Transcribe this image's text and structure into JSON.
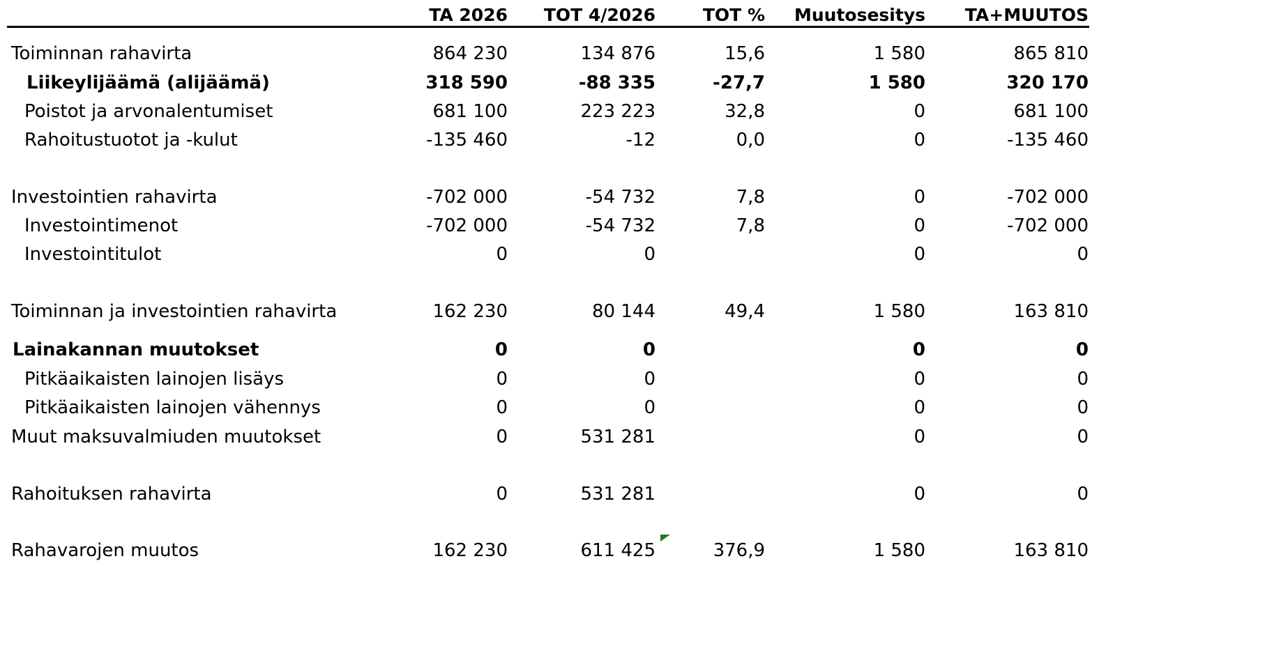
{
  "table": {
    "columns": [
      "TA 2026",
      "TOT 4/2026",
      "TOT %",
      "Muutosesitys",
      "TA+MUUTOS"
    ],
    "rows": [
      {
        "label": "Toiminnan rahavirta",
        "cells": [
          "864 230",
          "134 876",
          "15,6",
          "1 580",
          "865 810"
        ]
      },
      {
        "label": "Liikeylijäämä (alijäämä)",
        "bold": true,
        "cells": [
          "318 590",
          "-88 335",
          "-27,7",
          "1 580",
          "320 170"
        ]
      },
      {
        "label": "Poistot ja arvonalentumiset",
        "cells": [
          "681 100",
          "223 223",
          "32,8",
          "0",
          "681 100"
        ]
      },
      {
        "label": "Rahoitustuotot ja -kulut",
        "cells": [
          "-135 460",
          "-12",
          "0,0",
          "0",
          "-135 460"
        ]
      },
      {
        "label": "Investointien rahavirta",
        "cells": [
          "-702 000",
          "-54 732",
          "7,8",
          "0",
          "-702 000"
        ]
      },
      {
        "label": "Investointimenot",
        "cells": [
          "-702 000",
          "-54 732",
          "7,8",
          "0",
          "-702 000"
        ]
      },
      {
        "label": "Investointitulot",
        "cells": [
          "0",
          "0",
          null,
          "0",
          "0"
        ]
      },
      {
        "label": "Toiminnan ja investointien rahavirta",
        "cells": [
          "162 230",
          "80 144",
          "49,4",
          "1 580",
          "163 810"
        ]
      },
      {
        "label": "Lainakannan muutokset",
        "bold": true,
        "cells": [
          "0",
          "0",
          null,
          "0",
          "0"
        ]
      },
      {
        "label": "Pitkäaikaisten lainojen lisäys",
        "cells": [
          "0",
          "0",
          null,
          "0",
          "0"
        ]
      },
      {
        "label": "Pitkäaikaisten lainojen vähennys",
        "cells": [
          "0",
          "0",
          null,
          "0",
          "0"
        ]
      },
      {
        "label": "Muut maksuvalmiuden muutokset",
        "cells": [
          "0",
          "531 281",
          null,
          "0",
          "0"
        ]
      },
      {
        "label": "Rahoituksen rahavirta",
        "cells": [
          "0",
          "531 281",
          null,
          "0",
          "0"
        ]
      },
      {
        "label": "Rahavarojen muutos",
        "cells": [
          "162 230",
          "611 425",
          "376,9",
          "1 580",
          "163 810"
        ]
      }
    ]
  }
}
